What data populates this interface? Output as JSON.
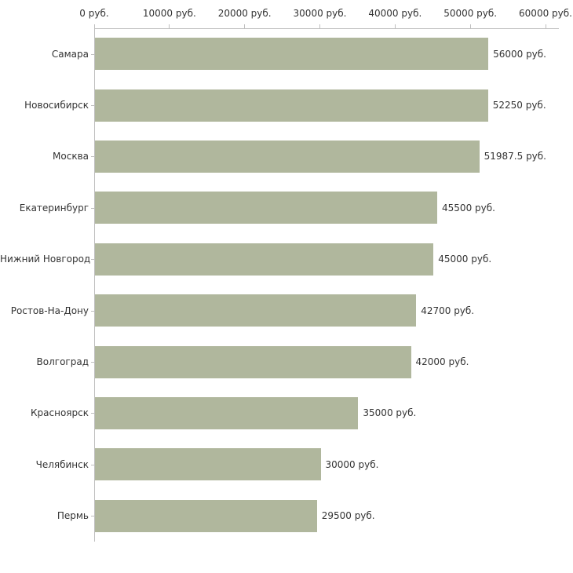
{
  "chart_data": {
    "type": "bar",
    "orientation": "horizontal",
    "title": "",
    "xlabel": "",
    "ylabel": "",
    "xlim": [
      0,
      60000
    ],
    "grid": false,
    "legend": "none",
    "bar_color": "#b0b79d",
    "axis_color": "#bfbfbf",
    "x_ticks": [
      "0 руб.",
      "10000 руб.",
      "20000 руб.",
      "30000 руб.",
      "40000 руб.",
      "50000 руб.",
      "60000 руб."
    ],
    "x_tick_values": [
      0,
      10000,
      20000,
      30000,
      40000,
      50000,
      60000
    ],
    "categories": [
      "Самара",
      "Новосибирск",
      "Москва",
      "Екатеринбург",
      "Нижний Новгород",
      "Ростов-На-Дону",
      "Волгоград",
      "Красноярск",
      "Челябинск",
      "Пермь"
    ],
    "values": [
      56000,
      52250,
      51987.5,
      45500,
      45000,
      42700,
      42000,
      35000,
      30000,
      29500
    ],
    "value_labels": [
      "56000 руб.",
      "52250 руб.",
      "51987.5 руб.",
      "45500 руб.",
      "45000 руб.",
      "42700 руб.",
      "42000 руб.",
      "35000 руб.",
      "30000 руб.",
      "29500 руб."
    ]
  }
}
